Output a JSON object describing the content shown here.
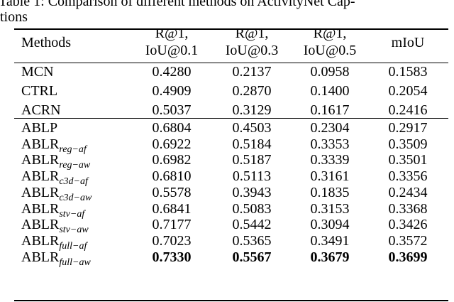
{
  "caption": {
    "lines": [
      "Table 1: Comparison of different methods on ActivityNet Cap-",
      "tions"
    ]
  },
  "table": {
    "header": [
      [
        "Methods"
      ],
      [
        "R@1,",
        "IoU@0.1"
      ],
      [
        "R@1,",
        "IoU@0.3"
      ],
      [
        "R@1,",
        "IoU@0.5"
      ],
      [
        "mIoU"
      ]
    ],
    "groups": [
      [
        [
          {
            "base": "MCN"
          },
          "0.4280",
          "0.2137",
          "0.0958",
          "0.1583"
        ],
        [
          {
            "base": "CTRL"
          },
          "0.4909",
          "0.2870",
          "0.1400",
          "0.2054"
        ],
        [
          {
            "base": "ACRN"
          },
          "0.5037",
          "0.3129",
          "0.1617",
          "0.2416"
        ]
      ],
      [
        [
          {
            "base": "ABLP"
          },
          "0.6804",
          "0.4503",
          "0.2304",
          "0.2917"
        ],
        [
          {
            "base": "ABLR",
            "sub": "reg−af"
          },
          "0.6922",
          "0.5184",
          "0.3353",
          "0.3509"
        ],
        [
          {
            "base": "ABLR",
            "sub": "reg−aw"
          },
          "0.6982",
          "0.5187",
          "0.3339",
          "0.3501"
        ],
        [
          {
            "base": "ABLR",
            "sub": "c3d−af"
          },
          "0.6810",
          "0.5113",
          "0.3161",
          "0.3356"
        ],
        [
          {
            "base": "ABLR",
            "sub": "c3d−aw"
          },
          "0.5578",
          "0.3943",
          "0.1835",
          "0.2434"
        ],
        [
          {
            "base": "ABLR",
            "sub": "stv−af"
          },
          "0.6841",
          "0.5083",
          "0.3153",
          "0.3368"
        ],
        [
          {
            "base": "ABLR",
            "sub": "stv−aw"
          },
          "0.7177",
          "0.5442",
          "0.3094",
          "0.3426"
        ],
        [
          {
            "base": "ABLR",
            "sub": "full−af"
          },
          "0.7023",
          "0.5365",
          "0.3491",
          "0.3572"
        ],
        [
          {
            "base": "ABLR",
            "sub": "full−aw"
          },
          "0.7330",
          "0.5567",
          "0.3679",
          "0.3699"
        ]
      ]
    ]
  }
}
